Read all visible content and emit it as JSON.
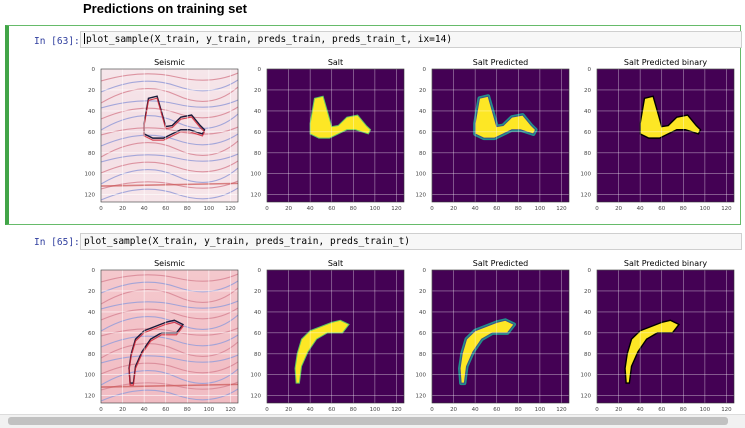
{
  "heading": "Predictions on training set",
  "cells": [
    {
      "prompt": "In [63]:",
      "code": "plot_sample(X_train, y_train, preds_train, preds_train_t, ix=14)",
      "panels": [
        {
          "title": "Seismic",
          "kind": "seismic",
          "mask": "mask1"
        },
        {
          "title": "Salt",
          "kind": "mask",
          "mask": "mask1"
        },
        {
          "title": "Salt Predicted",
          "kind": "pred",
          "mask": "mask1"
        },
        {
          "title": "Salt Predicted binary",
          "kind": "binary",
          "mask": "mask1"
        }
      ]
    },
    {
      "prompt": "In [65]:",
      "code": "plot_sample(X_train, y_train, preds_train, preds_train_t)",
      "panels": [
        {
          "title": "Seismic",
          "kind": "seismic",
          "mask": "mask2"
        },
        {
          "title": "Salt",
          "kind": "mask",
          "mask": "mask2"
        },
        {
          "title": "Salt Predicted",
          "kind": "pred",
          "mask": "mask2"
        },
        {
          "title": "Salt Predicted binary",
          "kind": "binary",
          "mask": "mask2"
        }
      ]
    }
  ],
  "axis": {
    "x_ticks": [
      "0",
      "20",
      "40",
      "60",
      "80",
      "100",
      "120"
    ],
    "y_ticks": [
      "0",
      "20",
      "40",
      "60",
      "80",
      "100",
      "120"
    ],
    "range": [
      0,
      127
    ]
  },
  "masks": {
    "mask1": [
      [
        44,
        28
      ],
      [
        52,
        26
      ],
      [
        57,
        44
      ],
      [
        60,
        55
      ],
      [
        66,
        54
      ],
      [
        74,
        46
      ],
      [
        84,
        44
      ],
      [
        92,
        54
      ],
      [
        96,
        58
      ],
      [
        94,
        62
      ],
      [
        82,
        58
      ],
      [
        74,
        58
      ],
      [
        66,
        62
      ],
      [
        58,
        66
      ],
      [
        48,
        66
      ],
      [
        40,
        62
      ],
      [
        40,
        52
      ]
    ],
    "mask2": [
      [
        60,
        50
      ],
      [
        68,
        48
      ],
      [
        76,
        52
      ],
      [
        70,
        60
      ],
      [
        56,
        60
      ],
      [
        46,
        66
      ],
      [
        38,
        78
      ],
      [
        32,
        92
      ],
      [
        30,
        108
      ],
      [
        27,
        108
      ],
      [
        26,
        94
      ],
      [
        28,
        80
      ],
      [
        32,
        66
      ],
      [
        40,
        58
      ]
    ]
  },
  "colors": {
    "viridis_dark": "#440154",
    "viridis_yellow": "#fde725",
    "viridis_teal": "#21918c",
    "viridis_green": "#3b528b",
    "cell_border": "#42a548"
  }
}
